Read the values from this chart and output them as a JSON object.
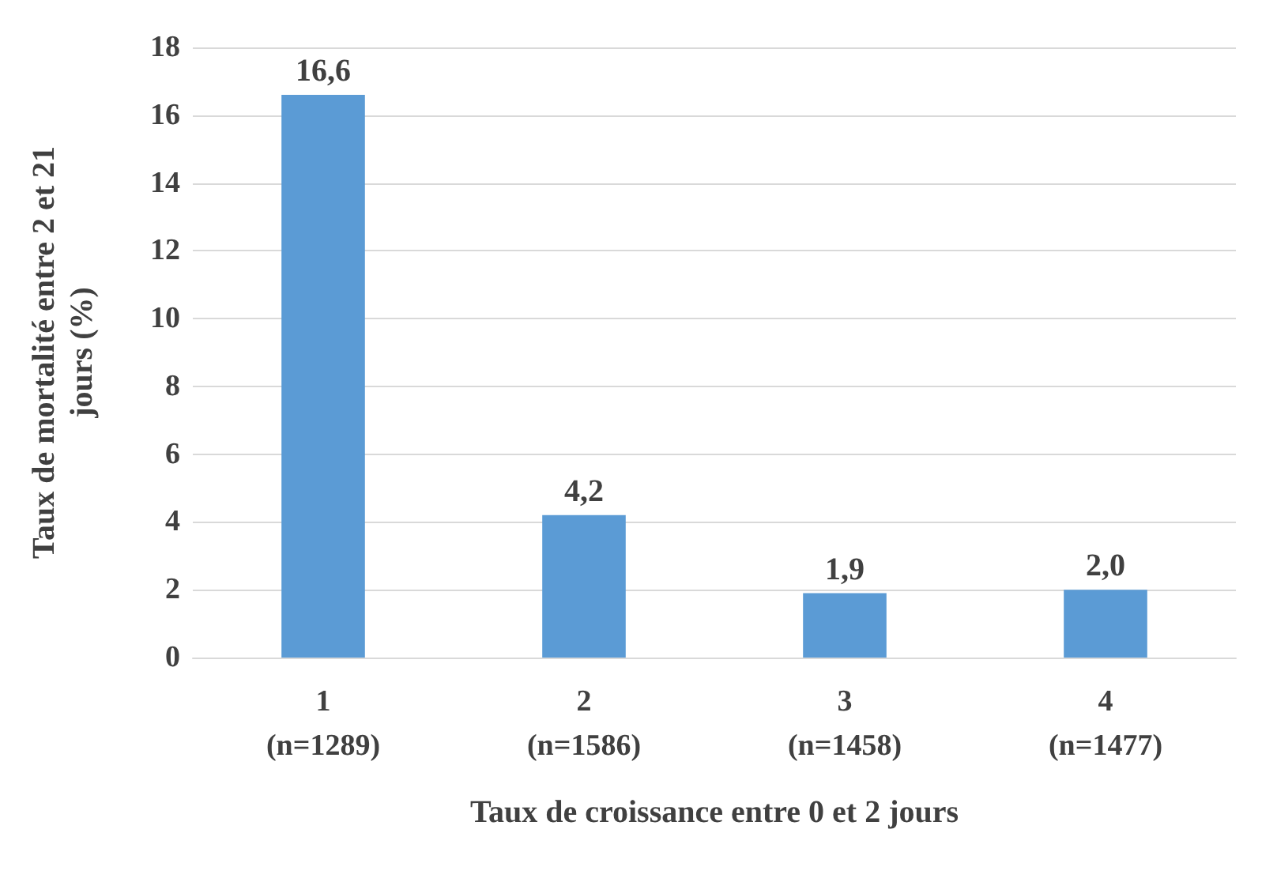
{
  "chart_data": {
    "type": "bar",
    "xlabel": "Taux de croissance entre 0 et 2 jours",
    "ylabel": "Taux de mortalité entre 2 et 21\njours (%)",
    "categories": [
      "1\n(n=1289)",
      "2\n(n=1586)",
      "3\n(n=1458)",
      "4\n(n=1477)"
    ],
    "values": [
      16.6,
      4.2,
      1.9,
      2.0
    ],
    "value_labels": [
      "16,6",
      "4,2",
      "1,9",
      "2,0"
    ],
    "color": "#5b9bd5",
    "ylim": [
      0,
      18
    ],
    "yticks": [
      0,
      2,
      4,
      6,
      8,
      10,
      12,
      14,
      16,
      18
    ],
    "grid": "y"
  }
}
